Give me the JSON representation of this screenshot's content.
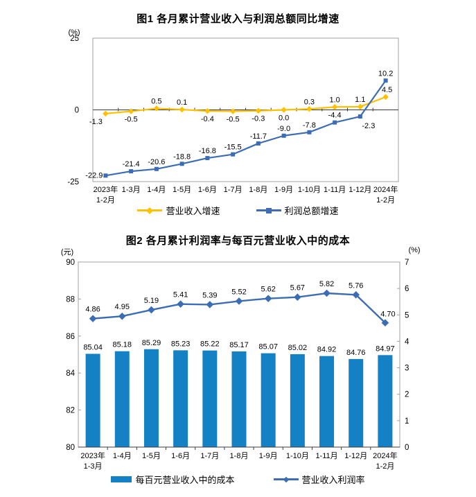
{
  "chart_data": [
    {
      "type": "line",
      "title": "图1  各月累计营业收入与利润总额同比增速",
      "y_unit": "(%)",
      "ylim": [
        -25,
        25
      ],
      "y_ticks": [
        25,
        0,
        -25
      ],
      "grid": false,
      "legend_position": "bottom",
      "categories": [
        "2023年\n1-2月",
        "1-3月",
        "1-4月",
        "1-5月",
        "1-6月",
        "1-7月",
        "1-8月",
        "1-9月",
        "1-10月",
        "1-11月",
        "1-12月",
        "2024年\n1-2月"
      ],
      "series": [
        {
          "name": "营业收入增速",
          "color": "#FFC000",
          "marker": "diamond",
          "label_decimals": 1,
          "values": [
            -1.3,
            -0.5,
            0.5,
            0.1,
            -0.4,
            -0.5,
            -0.3,
            0.0,
            0.3,
            1.0,
            1.1,
            4.5
          ]
        },
        {
          "name": "利润总额增速",
          "color": "#3C6DB4",
          "marker": "square",
          "label_decimals": 1,
          "values": [
            -22.9,
            -21.4,
            -20.6,
            -18.8,
            -16.8,
            -15.5,
            -11.7,
            -9.0,
            -7.8,
            -4.4,
            -2.3,
            10.2
          ]
        }
      ]
    },
    {
      "type": "bar+line",
      "title": "图2  各月累计利润率与每百元营业收入中的成本",
      "left_unit": "(元)",
      "right_unit": "(%)",
      "left_ylim": [
        80,
        90
      ],
      "left_ticks": [
        90,
        88,
        86,
        84,
        82,
        80
      ],
      "right_ylim": [
        0,
        7
      ],
      "right_ticks": [
        7,
        6,
        5,
        4,
        3,
        2,
        1,
        0
      ],
      "grid": false,
      "legend_position": "bottom",
      "categories": [
        "2023年\n1-3月",
        "1-4月",
        "1-5月",
        "1-6月",
        "1-7月",
        "1-8月",
        "1-9月",
        "1-10月",
        "1-11月",
        "1-12月",
        "2024年\n1-2月"
      ],
      "series": [
        {
          "name": "每百元营业收入中的成本",
          "type": "bar",
          "axis": "left",
          "color": "#1581C5",
          "label_decimals": 2,
          "values": [
            85.04,
            85.18,
            85.29,
            85.23,
            85.22,
            85.17,
            85.07,
            85.02,
            84.92,
            84.76,
            84.97
          ]
        },
        {
          "name": "营业收入利润率",
          "type": "line",
          "axis": "right",
          "color": "#3C6DB4",
          "marker": "diamond",
          "label_decimals": 2,
          "values": [
            4.86,
            4.95,
            5.19,
            5.41,
            5.39,
            5.52,
            5.62,
            5.67,
            5.82,
            5.76,
            4.7
          ]
        }
      ]
    }
  ]
}
